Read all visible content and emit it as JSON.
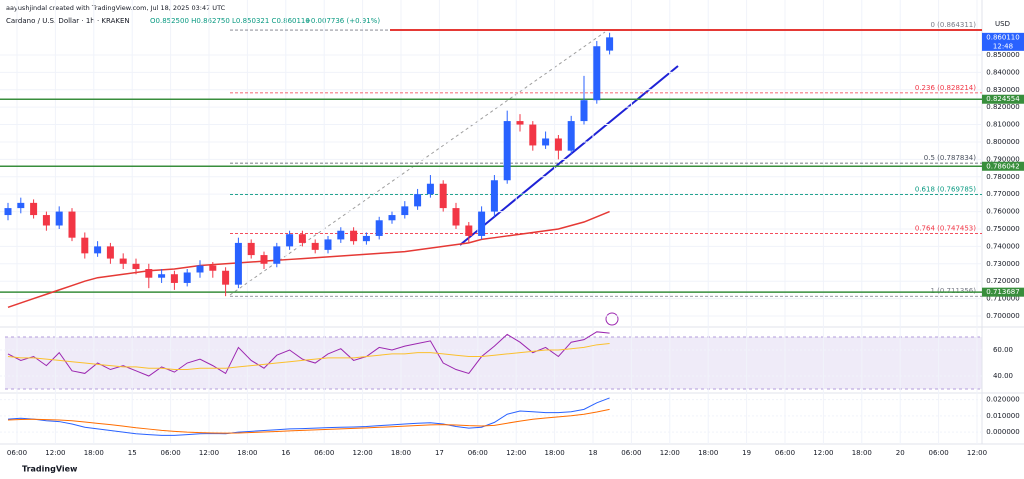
{
  "header": {
    "author": "aayushjindal created with TradingView.com, Jul 18, 2025 03:47 UTC",
    "symbol": "Cardano / U.S. Dollar · 1h · KRAKEN",
    "ohlc": "O0.852500 H0.862750 L0.850321 C0.860110",
    "change": "+0.007736 (+0.91%)"
  },
  "currency": "USD",
  "brand": "TradingView",
  "chart_data": [
    {
      "type": "candlestick",
      "up_color": "#2962ff",
      "down_color": "#f23645",
      "ma_color": "#e53935",
      "ylim": [
        0.6977,
        0.8787
      ],
      "yticks": [
        {
          "value": 0.7,
          "label": "0.700000"
        },
        {
          "value": 0.71,
          "label": "0.710000"
        },
        {
          "value": 0.72,
          "label": "0.720000"
        },
        {
          "value": 0.73,
          "label": "0.730000"
        },
        {
          "value": 0.74,
          "label": "0.740000"
        },
        {
          "value": 0.75,
          "label": "0.750000"
        },
        {
          "value": 0.76,
          "label": "0.760000"
        },
        {
          "value": 0.77,
          "label": "0.770000"
        },
        {
          "value": 0.78,
          "label": "0.780000"
        },
        {
          "value": 0.79,
          "label": "0.790000"
        },
        {
          "value": 0.8,
          "label": "0.800000"
        },
        {
          "value": 0.81,
          "label": "0.810000"
        },
        {
          "value": 0.82,
          "label": "0.820000"
        },
        {
          "value": 0.83,
          "label": "0.830000"
        },
        {
          "value": 0.84,
          "label": "0.840000"
        },
        {
          "value": 0.85,
          "label": "0.850000"
        }
      ],
      "time_labels": [
        "06:00",
        "12:00",
        "18:00",
        "15",
        "06:00",
        "12:00",
        "18:00",
        "16",
        "06:00",
        "12:00",
        "18:00",
        "17",
        "06:00",
        "12:00",
        "18:00",
        "18",
        "06:00",
        "12:00",
        "18:00",
        "19",
        "06:00",
        "12:00",
        "18:00",
        "20",
        "06:00",
        "12:00"
      ],
      "open": [
        0.758,
        0.762,
        0.765,
        0.758,
        0.752,
        0.76,
        0.745,
        0.736,
        0.74,
        0.733,
        0.73,
        0.727,
        0.722,
        0.724,
        0.719,
        0.725,
        0.729,
        0.726,
        0.718,
        0.742,
        0.735,
        0.73,
        0.74,
        0.747,
        0.742,
        0.738,
        0.744,
        0.749,
        0.743,
        0.746,
        0.755,
        0.758,
        0.763,
        0.77,
        0.776,
        0.762,
        0.752,
        0.746,
        0.76,
        0.778,
        0.812,
        0.81,
        0.798,
        0.802,
        0.795,
        0.812,
        0.824,
        0.8525
      ],
      "high": [
        0.765,
        0.768,
        0.767,
        0.76,
        0.763,
        0.762,
        0.748,
        0.743,
        0.742,
        0.736,
        0.733,
        0.73,
        0.727,
        0.726,
        0.727,
        0.732,
        0.731,
        0.728,
        0.745,
        0.744,
        0.737,
        0.742,
        0.749,
        0.749,
        0.744,
        0.746,
        0.751,
        0.751,
        0.748,
        0.757,
        0.76,
        0.766,
        0.773,
        0.781,
        0.778,
        0.765,
        0.754,
        0.763,
        0.781,
        0.818,
        0.816,
        0.812,
        0.806,
        0.804,
        0.815,
        0.838,
        0.858,
        0.86275
      ],
      "low": [
        0.755,
        0.759,
        0.756,
        0.749,
        0.75,
        0.743,
        0.733,
        0.734,
        0.73,
        0.727,
        0.724,
        0.716,
        0.719,
        0.715,
        0.717,
        0.722,
        0.722,
        0.7114,
        0.716,
        0.733,
        0.727,
        0.728,
        0.738,
        0.74,
        0.736,
        0.736,
        0.742,
        0.741,
        0.741,
        0.744,
        0.753,
        0.756,
        0.761,
        0.768,
        0.76,
        0.75,
        0.742,
        0.744,
        0.757,
        0.776,
        0.806,
        0.795,
        0.796,
        0.79,
        0.793,
        0.81,
        0.822,
        0.850321
      ],
      "close": [
        0.762,
        0.765,
        0.758,
        0.752,
        0.76,
        0.745,
        0.736,
        0.74,
        0.733,
        0.73,
        0.727,
        0.722,
        0.724,
        0.719,
        0.725,
        0.729,
        0.726,
        0.718,
        0.742,
        0.735,
        0.73,
        0.74,
        0.747,
        0.742,
        0.738,
        0.744,
        0.749,
        0.743,
        0.746,
        0.755,
        0.758,
        0.763,
        0.77,
        0.776,
        0.762,
        0.752,
        0.746,
        0.76,
        0.778,
        0.812,
        0.81,
        0.798,
        0.802,
        0.795,
        0.812,
        0.824,
        0.855,
        0.86011
      ],
      "moving_average": [
        0.705,
        0.7075,
        0.71,
        0.7125,
        0.715,
        0.7175,
        0.72,
        0.722,
        0.723,
        0.724,
        0.725,
        0.726,
        0.7265,
        0.727,
        0.728,
        0.729,
        0.7295,
        0.73,
        0.7305,
        0.731,
        0.7315,
        0.732,
        0.7325,
        0.733,
        0.7335,
        0.734,
        0.7345,
        0.735,
        0.7355,
        0.736,
        0.7365,
        0.737,
        0.738,
        0.739,
        0.74,
        0.741,
        0.742,
        0.744,
        0.745,
        0.746,
        0.747,
        0.748,
        0.749,
        0.75,
        0.752,
        0.754,
        0.757,
        0.76
      ],
      "fibonacci": [
        {
          "label": "0 (0.864311)",
          "value": 0.864311,
          "color": "#787b86"
        },
        {
          "label": "0.236 (0.828214)",
          "value": 0.828214,
          "color": "#f23645"
        },
        {
          "label": "0.5 (0.787834)",
          "value": 0.787834,
          "color": "#4c525e"
        },
        {
          "label": "0.618 (0.769785)",
          "value": 0.769785,
          "color": "#089981"
        },
        {
          "label": "0.764 (0.747453)",
          "value": 0.747453,
          "color": "#f23645"
        },
        {
          "label": "1 (0.711356)",
          "value": 0.711356,
          "color": "#787b86"
        }
      ],
      "resistance": {
        "value": 0.864311,
        "color": "#e53935"
      },
      "price_tags": [
        {
          "value": 0.86011,
          "label": "0.860110",
          "sub": "12:48",
          "color": "#2962ff"
        },
        {
          "value": 0.824554,
          "label": "0.824554",
          "color": "#388e3c"
        },
        {
          "value": 0.786042,
          "label": "0.786042",
          "color": "#388e3c"
        },
        {
          "value": 0.713687,
          "label": "0.713687",
          "color": "#388e3c"
        }
      ]
    },
    {
      "type": "line",
      "ylim": [
        25.4,
        75.4
      ],
      "yticks": [
        {
          "value": 60,
          "label": "60.00"
        },
        {
          "value": 40,
          "label": "40.00"
        }
      ],
      "series": [
        {
          "color": "#9c27b0",
          "values": [
            57,
            52,
            55,
            48,
            58,
            44,
            42,
            50,
            45,
            48,
            44,
            40,
            47,
            43,
            50,
            53,
            48,
            42,
            62,
            52,
            46,
            56,
            60,
            53,
            50,
            57,
            61,
            52,
            55,
            62,
            60,
            63,
            65,
            67,
            50,
            45,
            42,
            55,
            63,
            72,
            66,
            58,
            62,
            55,
            66,
            68,
            74,
            73
          ]
        },
        {
          "color": "#fbc02d",
          "values": [
            55,
            54,
            54,
            53,
            52,
            51,
            50,
            49,
            48,
            47,
            47,
            46,
            46,
            45,
            45,
            46,
            46,
            46,
            47,
            48,
            49,
            50,
            51,
            52,
            53,
            54,
            54,
            54,
            55,
            56,
            57,
            57,
            58,
            58,
            57,
            56,
            55,
            55,
            56,
            57,
            58,
            59,
            60,
            60,
            61,
            62,
            64,
            65
          ]
        }
      ]
    },
    {
      "type": "line",
      "ylim": [
        -0.0085,
        0.0222
      ],
      "yticks": [
        {
          "value": 0.02,
          "label": "0.020000"
        },
        {
          "value": 0.01,
          "label": "0.010000"
        },
        {
          "value": 0,
          "label": "0.000000"
        }
      ],
      "series": [
        {
          "color": "#2962ff",
          "values": [
            0.008,
            0.0085,
            0.008,
            0.007,
            0.0065,
            0.005,
            0.003,
            0.002,
            0.001,
            0.0,
            -0.001,
            -0.0015,
            -0.002,
            -0.002,
            -0.0015,
            -0.001,
            -0.0008,
            -0.001,
            0.0,
            0.0005,
            0.001,
            0.0015,
            0.002,
            0.0022,
            0.0025,
            0.0028,
            0.003,
            0.0032,
            0.0035,
            0.004,
            0.0045,
            0.005,
            0.0055,
            0.0058,
            0.005,
            0.0035,
            0.0025,
            0.003,
            0.006,
            0.011,
            0.013,
            0.0125,
            0.012,
            0.012,
            0.0125,
            0.014,
            0.018,
            0.021
          ]
        },
        {
          "color": "#ff6d00",
          "values": [
            0.0075,
            0.0078,
            0.0079,
            0.0077,
            0.0075,
            0.007,
            0.0062,
            0.0054,
            0.0046,
            0.0037,
            0.0027,
            0.0019,
            0.0011,
            0.0005,
            0.0,
            -0.0003,
            -0.0005,
            -0.0006,
            -0.0005,
            -0.0002,
            0.0001,
            0.0004,
            0.0008,
            0.0011,
            0.0014,
            0.0017,
            0.002,
            0.0023,
            0.0026,
            0.003,
            0.0033,
            0.0037,
            0.0041,
            0.0045,
            0.0046,
            0.0044,
            0.004,
            0.0038,
            0.0042,
            0.0055,
            0.0068,
            0.0079,
            0.0087,
            0.0094,
            0.0101,
            0.011,
            0.0124,
            0.014
          ]
        }
      ]
    }
  ]
}
